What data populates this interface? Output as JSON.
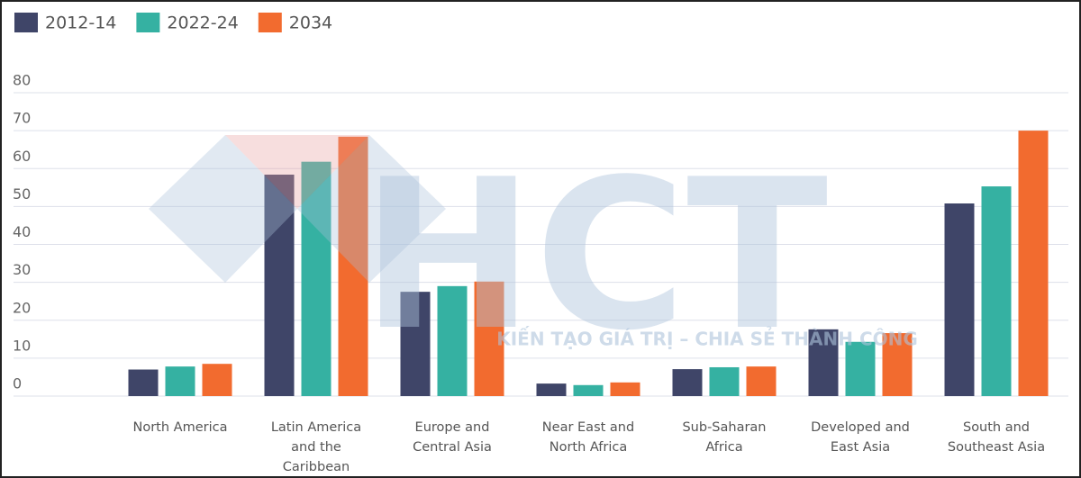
{
  "chart_data": {
    "type": "bar",
    "categories": [
      "North America",
      "Latin America and the Caribbean",
      "Europe and Central Asia",
      "Near East and North Africa",
      "Sub-Saharan Africa",
      "Developed and East Asia",
      "South and Southeast Asia"
    ],
    "series": [
      {
        "name": "2012-14",
        "color": "#3f4568",
        "values": [
          7,
          58.4,
          27.5,
          3.3,
          7.1,
          17.6,
          50.8
        ]
      },
      {
        "name": "2022-24",
        "color": "#35b1a2",
        "values": [
          7.8,
          61.8,
          29,
          2.9,
          7.6,
          14.3,
          55.3
        ]
      },
      {
        "name": "2034",
        "color": "#f26b2f",
        "values": [
          8.5,
          68.4,
          30.2,
          3.6,
          7.8,
          16.6,
          70
        ]
      }
    ],
    "ylim": [
      0,
      80
    ],
    "yticks": [
      0,
      10,
      20,
      30,
      40,
      50,
      60,
      70,
      80
    ],
    "grid": true,
    "legend": "top-left",
    "watermark": "HCT",
    "watermark_tagline": "KIẾN TẠO GIÁ TRỊ – CHIA SẺ THÀNH CÔNG"
  }
}
